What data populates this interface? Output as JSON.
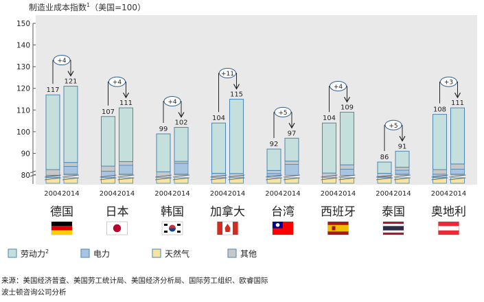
{
  "chart_data": {
    "type": "bar",
    "title": "制造业成本指数",
    "title_sup": "1",
    "title_suffix": "（美国=100）",
    "ylim": [
      80,
      150
    ],
    "yticks": [
      80,
      90,
      100,
      110,
      120,
      130,
      140,
      150
    ],
    "countries": [
      {
        "name": "德国",
        "flag": "de",
        "change": "+4",
        "bars": [
          {
            "year": "2004",
            "total": 117,
            "labor": 79.9,
            "electricity": 82.5,
            "gas": 78.8
          },
          {
            "year": "2014",
            "total": 121,
            "labor": 84,
            "electricity": 85.8,
            "gas": 80.4
          }
        ]
      },
      {
        "name": "日本",
        "flag": "jp",
        "change": "+4",
        "bars": [
          {
            "year": "2004",
            "total": 107,
            "labor": 81.8,
            "electricity": 84.1,
            "gas": 78.8
          },
          {
            "year": "2014",
            "total": 111,
            "labor": 84.5,
            "electricity": 86.2,
            "gas": 80.4
          }
        ]
      },
      {
        "name": "韩国",
        "flag": "kr",
        "change": "+4",
        "bars": [
          {
            "year": "2004",
            "total": 99,
            "labor": 78.6,
            "electricity": 81.5,
            "gas": 79.4
          },
          {
            "year": "2014",
            "total": 102,
            "labor": 85.4,
            "electricity": 86.3,
            "gas": 80.4
          }
        ]
      },
      {
        "name": "加拿大",
        "flag": "ca",
        "change": "+11",
        "bars": [
          {
            "year": "2004",
            "total": 104,
            "labor": 78.4,
            "electricity": 80.8,
            "gas": 79.4
          },
          {
            "year": "2014",
            "total": 115,
            "labor": 78.3,
            "electricity": 80.7,
            "gas": 78.4
          }
        ]
      },
      {
        "name": "台湾",
        "flag": "tw",
        "change": "+5",
        "bars": [
          {
            "year": "2004",
            "total": 92,
            "labor": 80.7,
            "electricity": 82.1,
            "gas": 79.4
          },
          {
            "year": "2014",
            "total": 97,
            "labor": 84.9,
            "electricity": 86.4,
            "gas": 79.9
          }
        ]
      },
      {
        "name": "西班牙",
        "flag": "es",
        "change": "+4",
        "bars": [
          {
            "year": "2004",
            "total": 104,
            "labor": 78.6,
            "electricity": 80.9,
            "gas": 78.8
          },
          {
            "year": "2014",
            "total": 109,
            "labor": 82.7,
            "electricity": 84.7,
            "gas": 79.8
          }
        ]
      },
      {
        "name": "泰国",
        "flag": "th",
        "change": "+5",
        "bars": [
          {
            "year": "2004",
            "total": 86,
            "labor": 79.2,
            "electricity": 80.8,
            "gas": 78.8
          },
          {
            "year": "2014",
            "total": 91,
            "labor": 82.2,
            "electricity": 83.6,
            "gas": 80.4
          }
        ]
      },
      {
        "name": "奥地利",
        "flag": "at",
        "change": "+3",
        "bars": [
          {
            "year": "2004",
            "total": 108,
            "labor": 80.4,
            "electricity": 82.5,
            "gas": 78.8
          },
          {
            "year": "2014",
            "total": 111,
            "labor": 82.7,
            "electricity": 85.1,
            "gas": 80.4
          }
        ]
      }
    ],
    "legend": [
      {
        "key": "labor",
        "label": "劳动力",
        "sup": "2",
        "color": "#c5e0dc"
      },
      {
        "key": "electricity",
        "label": "电力",
        "color": "#a9c4e0"
      },
      {
        "key": "gas",
        "label": "天然气",
        "color": "#f6e3a1"
      },
      {
        "key": "other",
        "label": "其他",
        "color": "#c8c8c8"
      }
    ],
    "colors": {
      "background": "#e9e9e9",
      "border": "#4a85b4",
      "flag_red": "#dd0000",
      "flag_gold": "#ffce00",
      "flag_blue": "#0038a8",
      "flag_kr_red": "#cd2e3a",
      "flag_kr_blue": "#0047a0",
      "flag_tw_red": "#fe0000",
      "flag_tw_blue": "#000095",
      "flag_th_red": "#a51931",
      "flag_th_blue": "#2d2a4a",
      "flag_at_red": "#ed2939",
      "flag_es_red": "#aa151b",
      "flag_es_yellow": "#f1bf00"
    }
  },
  "source": {
    "label": "来源：",
    "text": "美国经济普查、美国劳工统计局、美国经济分析局、国际劳工组织、欧睿国际",
    "text_line2": "波士顿咨询公司分析"
  }
}
